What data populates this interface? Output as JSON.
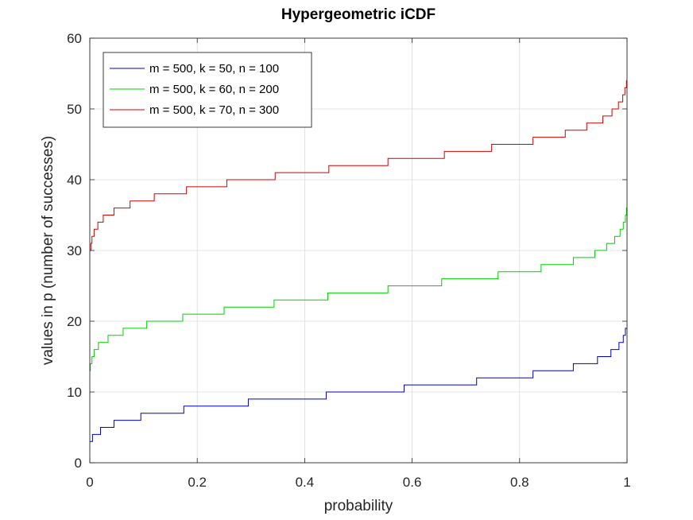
{
  "chart_data": {
    "type": "line",
    "title": "Hypergeometric iCDF",
    "xlabel": "probability",
    "ylabel": "values in p (number of successes)",
    "xlim": [
      0,
      1
    ],
    "ylim": [
      0,
      60
    ],
    "xticks": [
      0,
      0.2,
      0.4,
      0.6,
      0.8,
      1
    ],
    "xtick_labels": [
      "0",
      "0.2",
      "0.4",
      "0.6",
      "0.8",
      "1"
    ],
    "yticks": [
      0,
      10,
      20,
      30,
      40,
      50,
      60
    ],
    "ytick_labels": [
      "0",
      "10",
      "20",
      "30",
      "40",
      "50",
      "60"
    ],
    "grid": true,
    "legend_position": "top-left",
    "series": [
      {
        "name": "m = 500, k = 50, n = 100",
        "color": "#0000c0",
        "step": "post",
        "x": [
          0,
          0.005,
          0.02,
          0.045,
          0.095,
          0.175,
          0.295,
          0.44,
          0.585,
          0.72,
          0.825,
          0.9,
          0.945,
          0.97,
          0.985,
          0.993,
          0.997,
          1.0
        ],
        "y": [
          3,
          4,
          5,
          6,
          7,
          8,
          9,
          10,
          11,
          12,
          13,
          14,
          15,
          16,
          17,
          18,
          19,
          19
        ]
      },
      {
        "name": "m = 500, k = 60, n = 200",
        "color": "#00d000",
        "step": "post",
        "x": [
          0,
          0.001,
          0.004,
          0.008,
          0.016,
          0.034,
          0.062,
          0.106,
          0.173,
          0.25,
          0.343,
          0.443,
          0.555,
          0.655,
          0.76,
          0.84,
          0.9,
          0.94,
          0.962,
          0.977,
          0.987,
          0.993,
          0.997,
          0.999,
          1.0
        ],
        "y": [
          13,
          14,
          15,
          16,
          17,
          18,
          19,
          20,
          21,
          22,
          23,
          24,
          25,
          26,
          27,
          28,
          29,
          30,
          31,
          32,
          33,
          34,
          35,
          36,
          36
        ]
      },
      {
        "name": "m = 500, k = 70, n = 300",
        "color": "#d00000",
        "step": "post",
        "x": [
          0,
          0.002,
          0.004,
          0.008,
          0.015,
          0.025,
          0.045,
          0.075,
          0.12,
          0.18,
          0.255,
          0.345,
          0.445,
          0.555,
          0.66,
          0.748,
          0.825,
          0.885,
          0.925,
          0.955,
          0.972,
          0.984,
          0.992,
          0.996,
          0.999,
          1.0
        ],
        "y": [
          30,
          31,
          32,
          33,
          34,
          35,
          36,
          37,
          38,
          39,
          40,
          41,
          42,
          43,
          44,
          45,
          46,
          47,
          48,
          49,
          50,
          51,
          52,
          53,
          54,
          54
        ]
      }
    ]
  }
}
